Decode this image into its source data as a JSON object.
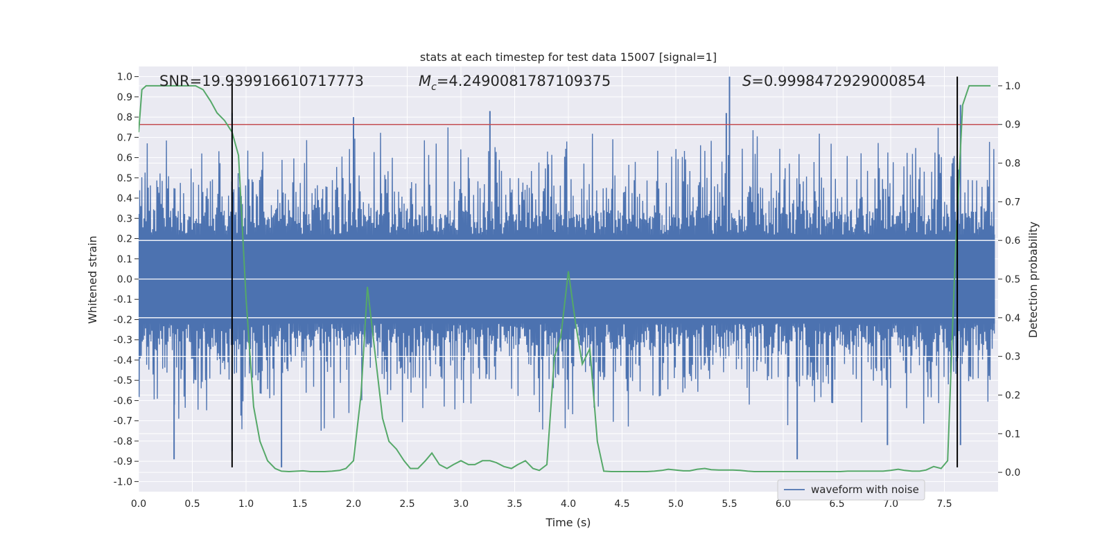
{
  "chart_data": {
    "type": "line",
    "title": "stats at each timestep for test data 15007 [signal=1]",
    "xlabel": "Time (s)",
    "ylabel": "Whitened strain",
    "y2label": "Detection probability",
    "xlim": [
      0.0,
      8.0
    ],
    "ylim": [
      -1.05,
      1.05
    ],
    "y2lim": [
      -0.05,
      1.05
    ],
    "x_ticks": [
      "0.0",
      "0.5",
      "1.0",
      "1.5",
      "2.0",
      "2.5",
      "3.0",
      "3.5",
      "4.0",
      "4.5",
      "5.0",
      "5.5",
      "6.0",
      "6.5",
      "7.0",
      "7.5"
    ],
    "y_ticks": [
      "-1.0",
      "-0.9",
      "-0.8",
      "-0.7",
      "-0.6",
      "-0.5",
      "-0.4",
      "-0.3",
      "-0.2",
      "-0.1",
      "0.0",
      "0.1",
      "0.2",
      "0.3",
      "0.4",
      "0.5",
      "0.6",
      "0.7",
      "0.8",
      "0.9",
      "1.0"
    ],
    "y2_ticks": [
      "0.0",
      "0.1",
      "0.2",
      "0.3",
      "0.4",
      "0.5",
      "0.6",
      "0.7",
      "0.8",
      "0.9",
      "1.0"
    ],
    "grid": true,
    "legend_position": "lower-right",
    "annotations": {
      "snr": "SNR=19.939916610717773",
      "mc_symbol": "M",
      "mc_subscript": "c",
      "mc_value": "=4.2490081787109375",
      "s_symbol": "S",
      "s_value": "=0.9998472929000854"
    },
    "threshold": {
      "value": 0.9,
      "axis": "y2",
      "color": "#c44e52"
    },
    "vertical_markers": [
      0.87,
      7.62
    ],
    "series": [
      {
        "name": "waveform with noise",
        "axis": "y",
        "color": "#4c72b0",
        "note": "dense noise trace, envelope approx ±0.25 to ±0.8",
        "peaks": [
          {
            "x": 0.33,
            "y": -0.89
          },
          {
            "x": 0.87,
            "y": 0.82
          },
          {
            "x": 0.87,
            "y": -0.85
          },
          {
            "x": 1.33,
            "y": -0.93
          },
          {
            "x": 2.0,
            "y": 0.8
          },
          {
            "x": 3.27,
            "y": 0.83
          },
          {
            "x": 5.5,
            "y": 1.0
          },
          {
            "x": 5.47,
            "y": 0.82
          },
          {
            "x": 7.65,
            "y": 0.86
          },
          {
            "x": 7.65,
            "y": -0.82
          },
          {
            "x": 6.97,
            "y": -0.82
          },
          {
            "x": 6.13,
            "y": -0.89
          }
        ]
      },
      {
        "name": "",
        "axis": "y2",
        "color": "#55a868",
        "x": [
          0.0,
          0.03,
          0.07,
          0.13,
          0.2,
          0.27,
          0.33,
          0.4,
          0.47,
          0.53,
          0.6,
          0.67,
          0.73,
          0.8,
          0.87,
          0.93,
          1.0,
          1.07,
          1.13,
          1.2,
          1.27,
          1.33,
          1.4,
          1.47,
          1.53,
          1.6,
          1.67,
          1.73,
          1.8,
          1.87,
          1.93,
          2.0,
          2.07,
          2.13,
          2.2,
          2.27,
          2.33,
          2.4,
          2.47,
          2.53,
          2.6,
          2.67,
          2.73,
          2.8,
          2.87,
          2.93,
          3.0,
          3.07,
          3.13,
          3.2,
          3.27,
          3.33,
          3.4,
          3.47,
          3.53,
          3.6,
          3.67,
          3.73,
          3.8,
          3.87,
          3.93,
          4.0,
          4.07,
          4.13,
          4.2,
          4.27,
          4.33,
          4.4,
          4.47,
          4.53,
          4.6,
          4.67,
          4.73,
          4.8,
          4.87,
          4.93,
          5.0,
          5.07,
          5.13,
          5.2,
          5.27,
          5.33,
          5.4,
          5.47,
          5.53,
          5.6,
          5.67,
          5.73,
          5.8,
          5.87,
          5.93,
          6.0,
          6.07,
          6.13,
          6.2,
          6.27,
          6.33,
          6.4,
          6.47,
          6.53,
          6.6,
          6.67,
          6.73,
          6.8,
          6.87,
          6.93,
          7.0,
          7.07,
          7.13,
          7.2,
          7.27,
          7.33,
          7.4,
          7.47,
          7.53,
          7.6,
          7.67,
          7.73,
          7.8,
          7.87,
          7.93
        ],
        "values": [
          0.88,
          0.99,
          1.0,
          1.0,
          1.0,
          1.0,
          1.0,
          1.0,
          1.0,
          1.0,
          0.99,
          0.96,
          0.93,
          0.91,
          0.88,
          0.82,
          0.45,
          0.17,
          0.08,
          0.03,
          0.01,
          0.003,
          0.002,
          0.003,
          0.004,
          0.002,
          0.002,
          0.002,
          0.003,
          0.005,
          0.01,
          0.03,
          0.2,
          0.48,
          0.31,
          0.14,
          0.08,
          0.06,
          0.03,
          0.01,
          0.01,
          0.03,
          0.05,
          0.02,
          0.01,
          0.02,
          0.03,
          0.02,
          0.02,
          0.03,
          0.03,
          0.025,
          0.015,
          0.01,
          0.02,
          0.03,
          0.01,
          0.005,
          0.02,
          0.3,
          0.35,
          0.52,
          0.38,
          0.28,
          0.32,
          0.08,
          0.003,
          0.002,
          0.002,
          0.002,
          0.002,
          0.002,
          0.002,
          0.003,
          0.005,
          0.008,
          0.006,
          0.004,
          0.004,
          0.008,
          0.01,
          0.007,
          0.006,
          0.006,
          0.006,
          0.005,
          0.003,
          0.002,
          0.002,
          0.002,
          0.002,
          0.002,
          0.002,
          0.002,
          0.002,
          0.002,
          0.002,
          0.002,
          0.002,
          0.002,
          0.003,
          0.003,
          0.003,
          0.003,
          0.003,
          0.003,
          0.005,
          0.008,
          0.005,
          0.003,
          0.003,
          0.006,
          0.015,
          0.01,
          0.03,
          0.55,
          0.95,
          1.0,
          1.0,
          1.0,
          1.0
        ]
      }
    ]
  }
}
